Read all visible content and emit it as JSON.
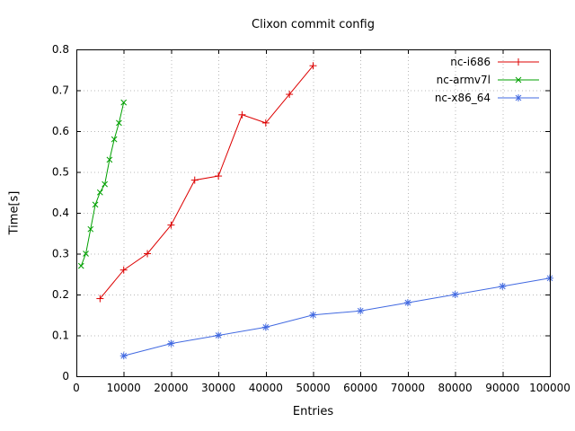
{
  "chart": {
    "title": "Clixon commit config",
    "xlabel": "Entries",
    "ylabel": "Time[s]"
  },
  "chart_data": {
    "type": "line",
    "title": "Clixon commit config",
    "xlabel": "Entries",
    "ylabel": "Time[s]",
    "xlim": [
      0,
      100000
    ],
    "ylim": [
      0,
      0.8
    ],
    "xticks": [
      0,
      10000,
      20000,
      30000,
      40000,
      50000,
      60000,
      70000,
      80000,
      90000,
      100000
    ],
    "xtick_labels": [
      "0",
      "10000",
      "20000",
      "30000",
      "40000",
      "50000",
      "60000",
      "70000",
      "80000",
      "90000",
      "100000"
    ],
    "yticks": [
      0,
      0.1,
      0.2,
      0.3,
      0.4,
      0.5,
      0.6,
      0.7,
      0.8
    ],
    "ytick_labels": [
      "0",
      "0.1",
      "0.2",
      "0.3",
      "0.4",
      "0.5",
      "0.6",
      "0.7",
      "0.8"
    ],
    "grid": true,
    "grid_color": "#b8b8b8",
    "border_color": "#000000",
    "legend_position": "top-right",
    "series": [
      {
        "name": "nc-i686",
        "color": "#dd0000",
        "marker": "plus",
        "x": [
          5000,
          10000,
          15000,
          20000,
          25000,
          30000,
          35000,
          40000,
          45000,
          50000
        ],
        "y": [
          0.19,
          0.26,
          0.3,
          0.37,
          0.48,
          0.49,
          0.64,
          0.62,
          0.69,
          0.76
        ]
      },
      {
        "name": "nc-armv7l",
        "color": "#00a000",
        "marker": "x",
        "x": [
          1000,
          2000,
          3000,
          4000,
          5000,
          6000,
          7000,
          8000,
          9000,
          10000
        ],
        "y": [
          0.27,
          0.3,
          0.36,
          0.42,
          0.45,
          0.47,
          0.53,
          0.58,
          0.62,
          0.67
        ]
      },
      {
        "name": "nc-x86_64",
        "color": "#4169e1",
        "marker": "asterisk",
        "x": [
          10000,
          20000,
          30000,
          40000,
          50000,
          60000,
          70000,
          80000,
          90000,
          100000
        ],
        "y": [
          0.05,
          0.08,
          0.1,
          0.12,
          0.15,
          0.16,
          0.18,
          0.2,
          0.22,
          0.24
        ]
      }
    ]
  }
}
